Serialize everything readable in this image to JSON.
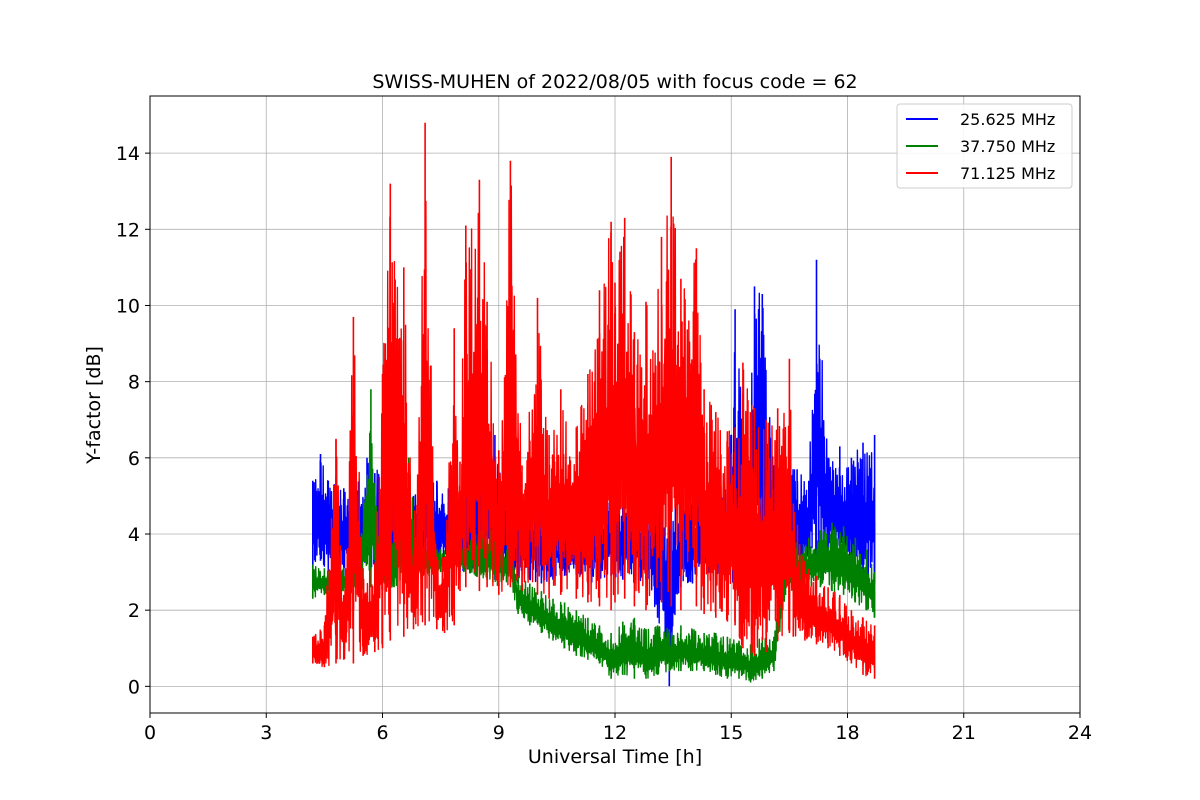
{
  "chart_data": {
    "type": "line",
    "title": "SWISS-MUHEN of 2022/08/05 with focus code = 62",
    "xlabel": "Universal Time [h]",
    "ylabel": "Y-factor [dB]",
    "xlim": [
      0,
      24
    ],
    "ylim": [
      -0.7,
      15.5
    ],
    "x_ticks": [
      0,
      3,
      6,
      9,
      12,
      15,
      18,
      21,
      24
    ],
    "y_ticks": [
      0,
      2,
      4,
      6,
      8,
      10,
      12,
      14
    ],
    "grid": true,
    "legend_position": "top-right",
    "series": [
      {
        "name": "25.625 MHz",
        "color": "#0000ff",
        "x": [
          4.2,
          4.4,
          4.6,
          4.8,
          5.0,
          5.3,
          5.6,
          5.8,
          6.0,
          6.2,
          6.5,
          6.8,
          7.1,
          7.4,
          7.7,
          8.0,
          8.3,
          8.6,
          8.9,
          9.2,
          9.5,
          9.8,
          10.1,
          10.4,
          10.7,
          11.0,
          11.3,
          11.6,
          11.9,
          12.2,
          12.5,
          12.8,
          13.1,
          13.4,
          13.7,
          14.0,
          14.3,
          14.6,
          14.9,
          15.1,
          15.4,
          15.6,
          15.8,
          16.1,
          16.4,
          16.7,
          17.0,
          17.2,
          17.5,
          17.8,
          18.1,
          18.4,
          18.7
        ],
        "y_min": [
          3.0,
          3.3,
          3.0,
          3.1,
          2.9,
          3.0,
          3.2,
          3.1,
          3.0,
          3.1,
          3.2,
          3.0,
          3.2,
          3.3,
          3.1,
          3.0,
          3.1,
          3.0,
          2.8,
          2.9,
          2.7,
          2.8,
          2.7,
          2.8,
          2.9,
          2.8,
          2.7,
          2.8,
          2.9,
          2.8,
          2.7,
          2.8,
          1.8,
          0.0,
          2.6,
          2.7,
          2.8,
          2.9,
          2.6,
          2.5,
          2.6,
          2.7,
          2.6,
          2.8,
          2.9,
          3.0,
          3.1,
          3.2,
          3.3,
          3.2,
          3.1,
          2.8,
          2.7
        ],
        "y_max": [
          5.4,
          6.1,
          5.4,
          5.5,
          5.2,
          5.3,
          6.0,
          5.6,
          5.9,
          5.6,
          5.1,
          5.0,
          5.7,
          5.4,
          5.2,
          5.0,
          5.4,
          7.2,
          6.6,
          5.0,
          5.2,
          5.0,
          4.8,
          4.6,
          4.8,
          4.9,
          5.0,
          4.7,
          4.9,
          5.0,
          5.2,
          4.8,
          5.3,
          5.1,
          4.9,
          5.2,
          5.0,
          5.4,
          5.2,
          9.9,
          5.6,
          10.5,
          10.3,
          5.8,
          6.0,
          5.7,
          5.4,
          11.2,
          6.0,
          6.3,
          6.0,
          6.4,
          6.6
        ]
      },
      {
        "name": "37.750 MHz",
        "color": "#008000",
        "x": [
          4.2,
          4.5,
          4.8,
          5.1,
          5.4,
          5.7,
          6.0,
          6.3,
          6.6,
          6.9,
          7.2,
          7.5,
          7.8,
          8.1,
          8.4,
          8.7,
          9.0,
          9.3,
          9.5,
          9.8,
          10.1,
          10.4,
          10.7,
          11.0,
          11.3,
          11.6,
          11.9,
          12.2,
          12.5,
          12.8,
          13.1,
          13.4,
          13.7,
          14.0,
          14.3,
          14.6,
          14.9,
          15.2,
          15.5,
          15.8,
          16.1,
          16.4,
          16.7,
          17.0,
          17.3,
          17.6,
          17.9,
          18.2,
          18.5,
          18.7
        ],
        "y_min": [
          2.3,
          2.4,
          2.5,
          2.4,
          2.5,
          2.6,
          2.5,
          2.6,
          2.7,
          2.8,
          2.9,
          3.0,
          3.1,
          3.0,
          2.9,
          2.8,
          2.6,
          2.7,
          1.9,
          1.6,
          1.4,
          1.2,
          1.0,
          0.8,
          0.7,
          0.6,
          0.2,
          0.3,
          0.2,
          0.2,
          0.3,
          0.4,
          0.4,
          0.4,
          0.4,
          0.3,
          0.2,
          0.2,
          0.1,
          0.2,
          0.4,
          2.4,
          2.5,
          2.6,
          2.6,
          2.5,
          2.4,
          2.2,
          2.0,
          1.8
        ],
        "y_max": [
          3.2,
          3.1,
          3.0,
          3.2,
          3.3,
          7.8,
          3.5,
          3.8,
          6.8,
          3.8,
          3.9,
          3.6,
          3.5,
          3.8,
          4.0,
          4.2,
          4.0,
          3.8,
          2.9,
          2.7,
          2.5,
          2.3,
          2.2,
          2.0,
          1.8,
          1.6,
          1.4,
          1.7,
          1.8,
          1.5,
          1.6,
          1.5,
          1.6,
          1.5,
          1.4,
          1.4,
          1.3,
          1.2,
          1.1,
          1.3,
          1.3,
          3.5,
          3.8,
          3.9,
          4.1,
          4.3,
          4.2,
          3.9,
          3.6,
          3.0
        ]
      },
      {
        "name": "71.125 MHz",
        "color": "#ff0000",
        "x": [
          4.2,
          4.5,
          4.8,
          5.0,
          5.25,
          5.5,
          5.8,
          6.0,
          6.2,
          6.55,
          6.8,
          7.1,
          7.4,
          7.6,
          7.85,
          8.0,
          8.15,
          8.5,
          8.7,
          9.0,
          9.3,
          9.6,
          10.0,
          10.3,
          10.6,
          11.0,
          11.3,
          11.6,
          11.9,
          12.0,
          12.25,
          12.5,
          12.8,
          13.2,
          13.45,
          13.7,
          14.1,
          14.3,
          14.6,
          14.9,
          15.1,
          15.3,
          15.6,
          15.9,
          16.2,
          16.5,
          16.6,
          16.9,
          17.2,
          17.5,
          17.8,
          18.1,
          18.4,
          18.7
        ],
        "y_min": [
          0.6,
          0.5,
          0.6,
          0.7,
          0.6,
          0.8,
          0.9,
          1.0,
          1.2,
          1.3,
          1.5,
          1.6,
          1.5,
          1.4,
          1.6,
          2.5,
          2.6,
          2.5,
          2.6,
          2.4,
          2.6,
          2.5,
          2.4,
          2.3,
          2.4,
          2.3,
          2.2,
          2.1,
          2.0,
          2.2,
          2.3,
          2.1,
          2.0,
          2.2,
          2.1,
          2.0,
          2.1,
          1.9,
          1.8,
          1.7,
          1.6,
          1.0,
          0.8,
          0.9,
          1.2,
          1.4,
          1.3,
          1.2,
          1.1,
          1.0,
          0.8,
          0.6,
          0.3,
          0.2
        ],
        "y_max": [
          1.3,
          1.6,
          6.5,
          2.4,
          9.7,
          3.1,
          3.2,
          8.2,
          13.2,
          11.0,
          3.6,
          14.8,
          3.4,
          3.4,
          9.4,
          5.9,
          12.1,
          13.3,
          10.1,
          6.2,
          13.8,
          5.8,
          10.2,
          6.6,
          7.8,
          6.8,
          8.2,
          10.4,
          12.2,
          10.6,
          12.3,
          9.3,
          10.1,
          11.8,
          13.9,
          10.7,
          11.5,
          7.8,
          7.2,
          6.7,
          6.8,
          8.5,
          7.3,
          7.0,
          7.3,
          8.6,
          4.8,
          3.3,
          2.9,
          2.6,
          2.4,
          2.0,
          1.8,
          1.6
        ]
      }
    ]
  }
}
